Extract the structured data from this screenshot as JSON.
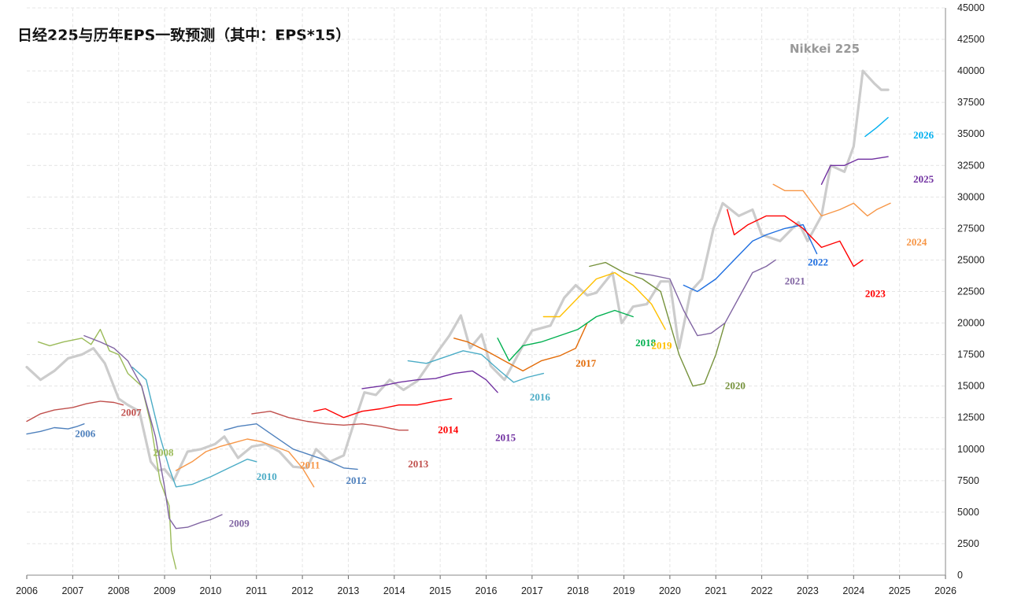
{
  "chart_data": {
    "type": "line",
    "title": "日经225与历年EPS一致预测（其中：EPS*15）",
    "xlabel": "",
    "ylabel": "",
    "xlim": [
      2006,
      2026
    ],
    "ylim": [
      0,
      45000
    ],
    "x_ticks": [
      2006,
      2007,
      2008,
      2009,
      2010,
      2011,
      2012,
      2013,
      2014,
      2015,
      2016,
      2017,
      2018,
      2019,
      2020,
      2021,
      2022,
      2023,
      2024,
      2025,
      2026
    ],
    "y_ticks": [
      0,
      2500,
      5000,
      7500,
      10000,
      12500,
      15000,
      17500,
      20000,
      22500,
      25000,
      27500,
      30000,
      32500,
      35000,
      37500,
      40000,
      42500,
      45000
    ],
    "grid": true,
    "series": [
      {
        "name": "Nikkei 225",
        "label": "Nikkei 225",
        "color": "#cccccc",
        "label_at": [
          2006.0,
          42500
        ],
        "x": [
          2006.0,
          2006.3,
          2006.6,
          2006.9,
          2007.2,
          2007.45,
          2007.7,
          2008.0,
          2008.2,
          2008.45,
          2008.7,
          2008.85,
          2009.0,
          2009.2,
          2009.5,
          2009.8,
          2010.1,
          2010.3,
          2010.6,
          2010.9,
          2011.2,
          2011.5,
          2011.8,
          2012.1,
          2012.3,
          2012.6,
          2012.9,
          2013.1,
          2013.35,
          2013.6,
          2013.9,
          2014.2,
          2014.5,
          2014.9,
          2015.2,
          2015.45,
          2015.65,
          2015.9,
          2016.1,
          2016.4,
          2016.8,
          2017.0,
          2017.4,
          2017.7,
          2017.95,
          2018.2,
          2018.4,
          2018.75,
          2018.95,
          2019.2,
          2019.5,
          2019.8,
          2020.0,
          2020.2,
          2020.45,
          2020.7,
          2020.95,
          2021.15,
          2021.5,
          2021.8,
          2022.0,
          2022.4,
          2022.8,
          2023.0,
          2023.3,
          2023.5,
          2023.8,
          2024.0,
          2024.2,
          2024.45,
          2024.6,
          2024.75
        ],
        "y": [
          16500,
          15500,
          16200,
          17200,
          17500,
          18000,
          16800,
          14000,
          13500,
          13000,
          9000,
          8300,
          8400,
          7500,
          9800,
          10000,
          10400,
          11000,
          9300,
          10200,
          10400,
          9800,
          8600,
          8500,
          10000,
          9000,
          9500,
          11800,
          14500,
          14300,
          15500,
          14700,
          15400,
          17500,
          19000,
          20600,
          18000,
          19100,
          16600,
          15500,
          18200,
          19400,
          19800,
          22000,
          23000,
          22200,
          22400,
          24000,
          20000,
          21300,
          21500,
          23300,
          23300,
          18000,
          22500,
          23500,
          27500,
          29500,
          28500,
          29000,
          27000,
          26500,
          28000,
          26500,
          28500,
          32500,
          32000,
          34000,
          40000,
          39000,
          38500,
          38500
        ]
      },
      {
        "name": "2006",
        "label": "2006",
        "color": "#4f81bd",
        "label_at": [
          2007.05,
          11200
        ],
        "x": [
          2006.0,
          2006.3,
          2006.6,
          2006.9,
          2007.1,
          2007.25
        ],
        "y": [
          11200,
          11400,
          11700,
          11600,
          11800,
          12000
        ]
      },
      {
        "name": "2007",
        "label": "2007",
        "color": "#c0504d",
        "label_at": [
          2008.05,
          12900
        ],
        "x": [
          2006.0,
          2006.3,
          2006.6,
          2007.0,
          2007.3,
          2007.6,
          2007.9,
          2008.1
        ],
        "y": [
          12200,
          12800,
          13100,
          13300,
          13600,
          13800,
          13700,
          13500
        ]
      },
      {
        "name": "2008",
        "label": "2008",
        "color": "#9bbb59",
        "label_at": [
          2008.75,
          9700
        ],
        "x": [
          2006.25,
          2006.5,
          2006.8,
          2007.2,
          2007.4,
          2007.6,
          2007.8,
          2008.0,
          2008.2,
          2008.5,
          2008.7,
          2008.9,
          2009.1,
          2009.15,
          2009.25
        ],
        "y": [
          18500,
          18200,
          18500,
          18800,
          18300,
          19500,
          17800,
          17500,
          16000,
          15000,
          12000,
          7500,
          5500,
          2000,
          500
        ]
      },
      {
        "name": "2009",
        "label": "2009",
        "color": "#8064a2",
        "label_at": [
          2010.4,
          4100
        ],
        "x": [
          2007.25,
          2007.6,
          2007.9,
          2008.2,
          2008.5,
          2008.8,
          2009.0,
          2009.1,
          2009.25,
          2009.5,
          2009.8,
          2010.0,
          2010.25
        ],
        "y": [
          19000,
          18500,
          18000,
          17000,
          15000,
          11000,
          7000,
          4500,
          3700,
          3800,
          4200,
          4400,
          4800
        ]
      },
      {
        "name": "2010",
        "label": "2010",
        "color": "#4bacc6",
        "label_at": [
          2011.0,
          7800
        ],
        "x": [
          2008.3,
          2008.6,
          2008.9,
          2009.1,
          2009.25,
          2009.6,
          2010.0,
          2010.4,
          2010.8,
          2011.0
        ],
        "y": [
          16500,
          15500,
          11000,
          8500,
          7000,
          7200,
          7800,
          8500,
          9200,
          9000
        ]
      },
      {
        "name": "2011",
        "label": "2011",
        "color": "#f79646",
        "label_at": [
          2011.95,
          8700
        ],
        "x": [
          2009.25,
          2009.6,
          2009.9,
          2010.2,
          2010.5,
          2010.8,
          2011.1,
          2011.4,
          2011.7,
          2012.0,
          2012.25
        ],
        "y": [
          8300,
          9000,
          9800,
          10200,
          10500,
          10800,
          10600,
          10200,
          9800,
          8500,
          7000
        ]
      },
      {
        "name": "2012",
        "label": "2012",
        "color": "#4f81bd",
        "label_at": [
          2012.95,
          7500
        ],
        "x": [
          2010.3,
          2010.6,
          2011.0,
          2011.4,
          2011.8,
          2012.2,
          2012.6,
          2012.9,
          2013.2
        ],
        "y": [
          11500,
          11800,
          12000,
          11000,
          10000,
          9500,
          9000,
          8500,
          8400
        ]
      },
      {
        "name": "2013",
        "label": "2013",
        "color": "#c0504d",
        "label_at": [
          2014.3,
          8800
        ],
        "x": [
          2010.9,
          2011.3,
          2011.7,
          2012.1,
          2012.5,
          2012.9,
          2013.3,
          2013.7,
          2014.1,
          2014.3
        ],
        "y": [
          12800,
          13000,
          12500,
          12200,
          12000,
          11900,
          12000,
          11800,
          11500,
          11500
        ]
      },
      {
        "name": "2014",
        "label": "2014",
        "color": "#ff0000",
        "label_at": [
          2014.95,
          11500
        ],
        "x": [
          2012.25,
          2012.5,
          2012.9,
          2013.3,
          2013.7,
          2014.1,
          2014.5,
          2014.9,
          2015.25
        ],
        "y": [
          13000,
          13200,
          12500,
          13000,
          13200,
          13500,
          13500,
          13800,
          14000
        ]
      },
      {
        "name": "2015",
        "label": "2015",
        "color": "#7030a0",
        "label_at": [
          2016.2,
          10900
        ],
        "x": [
          2013.3,
          2013.7,
          2014.1,
          2014.5,
          2014.9,
          2015.3,
          2015.7,
          2016.0,
          2016.25
        ],
        "y": [
          14800,
          15000,
          15300,
          15500,
          15600,
          16000,
          16200,
          15500,
          14500
        ]
      },
      {
        "name": "2016",
        "label": "2016",
        "color": "#4bacc6",
        "label_at": [
          2016.95,
          14100
        ],
        "x": [
          2014.3,
          2014.7,
          2015.1,
          2015.5,
          2015.9,
          2016.3,
          2016.6,
          2016.9,
          2017.25
        ],
        "y": [
          17000,
          16800,
          17300,
          17800,
          17500,
          16200,
          15300,
          15700,
          16000
        ]
      },
      {
        "name": "2017",
        "label": "2017",
        "color": "#e36c09",
        "label_at": [
          2017.95,
          16800
        ],
        "x": [
          2015.3,
          2015.6,
          2016.0,
          2016.4,
          2016.8,
          2017.2,
          2017.6,
          2017.95,
          2018.2
        ],
        "y": [
          18800,
          18500,
          17800,
          17000,
          16200,
          17000,
          17400,
          18000,
          20000
        ]
      },
      {
        "name": "2018",
        "label": "2018",
        "color": "#00b050",
        "label_at": [
          2019.25,
          18400
        ],
        "x": [
          2016.25,
          2016.5,
          2016.8,
          2017.2,
          2017.6,
          2018.0,
          2018.4,
          2018.8,
          2019.2
        ],
        "y": [
          18800,
          17000,
          18200,
          18500,
          19000,
          19500,
          20500,
          21000,
          20500
        ]
      },
      {
        "name": "2019",
        "label": "2019",
        "color": "#ffc000",
        "label_at": [
          2019.6,
          18200
        ],
        "x": [
          2017.25,
          2017.6,
          2018.0,
          2018.4,
          2018.8,
          2019.2,
          2019.6,
          2019.9
        ],
        "y": [
          20500,
          20500,
          22000,
          23500,
          24000,
          23000,
          21500,
          19500
        ]
      },
      {
        "name": "2020",
        "label": "2020",
        "color": "#76923c",
        "label_at": [
          2021.2,
          15000
        ],
        "x": [
          2018.25,
          2018.6,
          2019.0,
          2019.4,
          2019.8,
          2020.2,
          2020.5,
          2020.75,
          2021.0,
          2021.2
        ],
        "y": [
          24500,
          24800,
          24000,
          23500,
          22500,
          17500,
          15000,
          15200,
          17500,
          20000
        ]
      },
      {
        "name": "2021",
        "label": "2021",
        "color": "#8064a2",
        "label_at": [
          2022.5,
          23300
        ],
        "x": [
          2019.25,
          2019.6,
          2020.0,
          2020.3,
          2020.6,
          2020.9,
          2021.2,
          2021.5,
          2021.8,
          2022.1,
          2022.3
        ],
        "y": [
          24000,
          23800,
          23500,
          21000,
          19000,
          19200,
          20000,
          22000,
          24000,
          24500,
          25000
        ]
      },
      {
        "name": "2022",
        "label": "2022",
        "color": "#1f6fe0",
        "label_at": [
          2023.0,
          24800
        ],
        "x": [
          2020.3,
          2020.6,
          2021.0,
          2021.4,
          2021.8,
          2022.1,
          2022.5,
          2022.9,
          2023.2
        ],
        "y": [
          23000,
          22500,
          23500,
          25000,
          26500,
          27000,
          27500,
          27800,
          25500
        ]
      },
      {
        "name": "2023",
        "label": "2023",
        "color": "#ff0000",
        "label_at": [
          2024.25,
          22300
        ],
        "x": [
          2021.25,
          2021.4,
          2021.7,
          2022.1,
          2022.5,
          2022.9,
          2023.3,
          2023.7,
          2024.0,
          2024.2
        ],
        "y": [
          29000,
          27000,
          27800,
          28500,
          28500,
          27500,
          26000,
          26500,
          24500,
          25000
        ]
      },
      {
        "name": "2024",
        "label": "2024",
        "color": "#f79646",
        "label_at": [
          2025.15,
          26400
        ],
        "x": [
          2022.25,
          2022.5,
          2022.9,
          2023.3,
          2023.7,
          2024.0,
          2024.3,
          2024.5,
          2024.8
        ],
        "y": [
          31000,
          30500,
          30500,
          28500,
          29000,
          29500,
          28500,
          29000,
          29500
        ]
      },
      {
        "name": "2025",
        "label": "2025",
        "color": "#7030a0",
        "label_at": [
          2025.3,
          31400
        ],
        "x": [
          2023.3,
          2023.5,
          2023.8,
          2024.1,
          2024.4,
          2024.75
        ],
        "y": [
          31000,
          32500,
          32500,
          33000,
          33000,
          33200
        ]
      },
      {
        "name": "2026",
        "label": "2026",
        "color": "#00b0f0",
        "label_at": [
          2025.3,
          34900
        ],
        "x": [
          2024.25,
          2024.5,
          2024.75
        ],
        "y": [
          34800,
          35500,
          36300
        ]
      }
    ]
  }
}
